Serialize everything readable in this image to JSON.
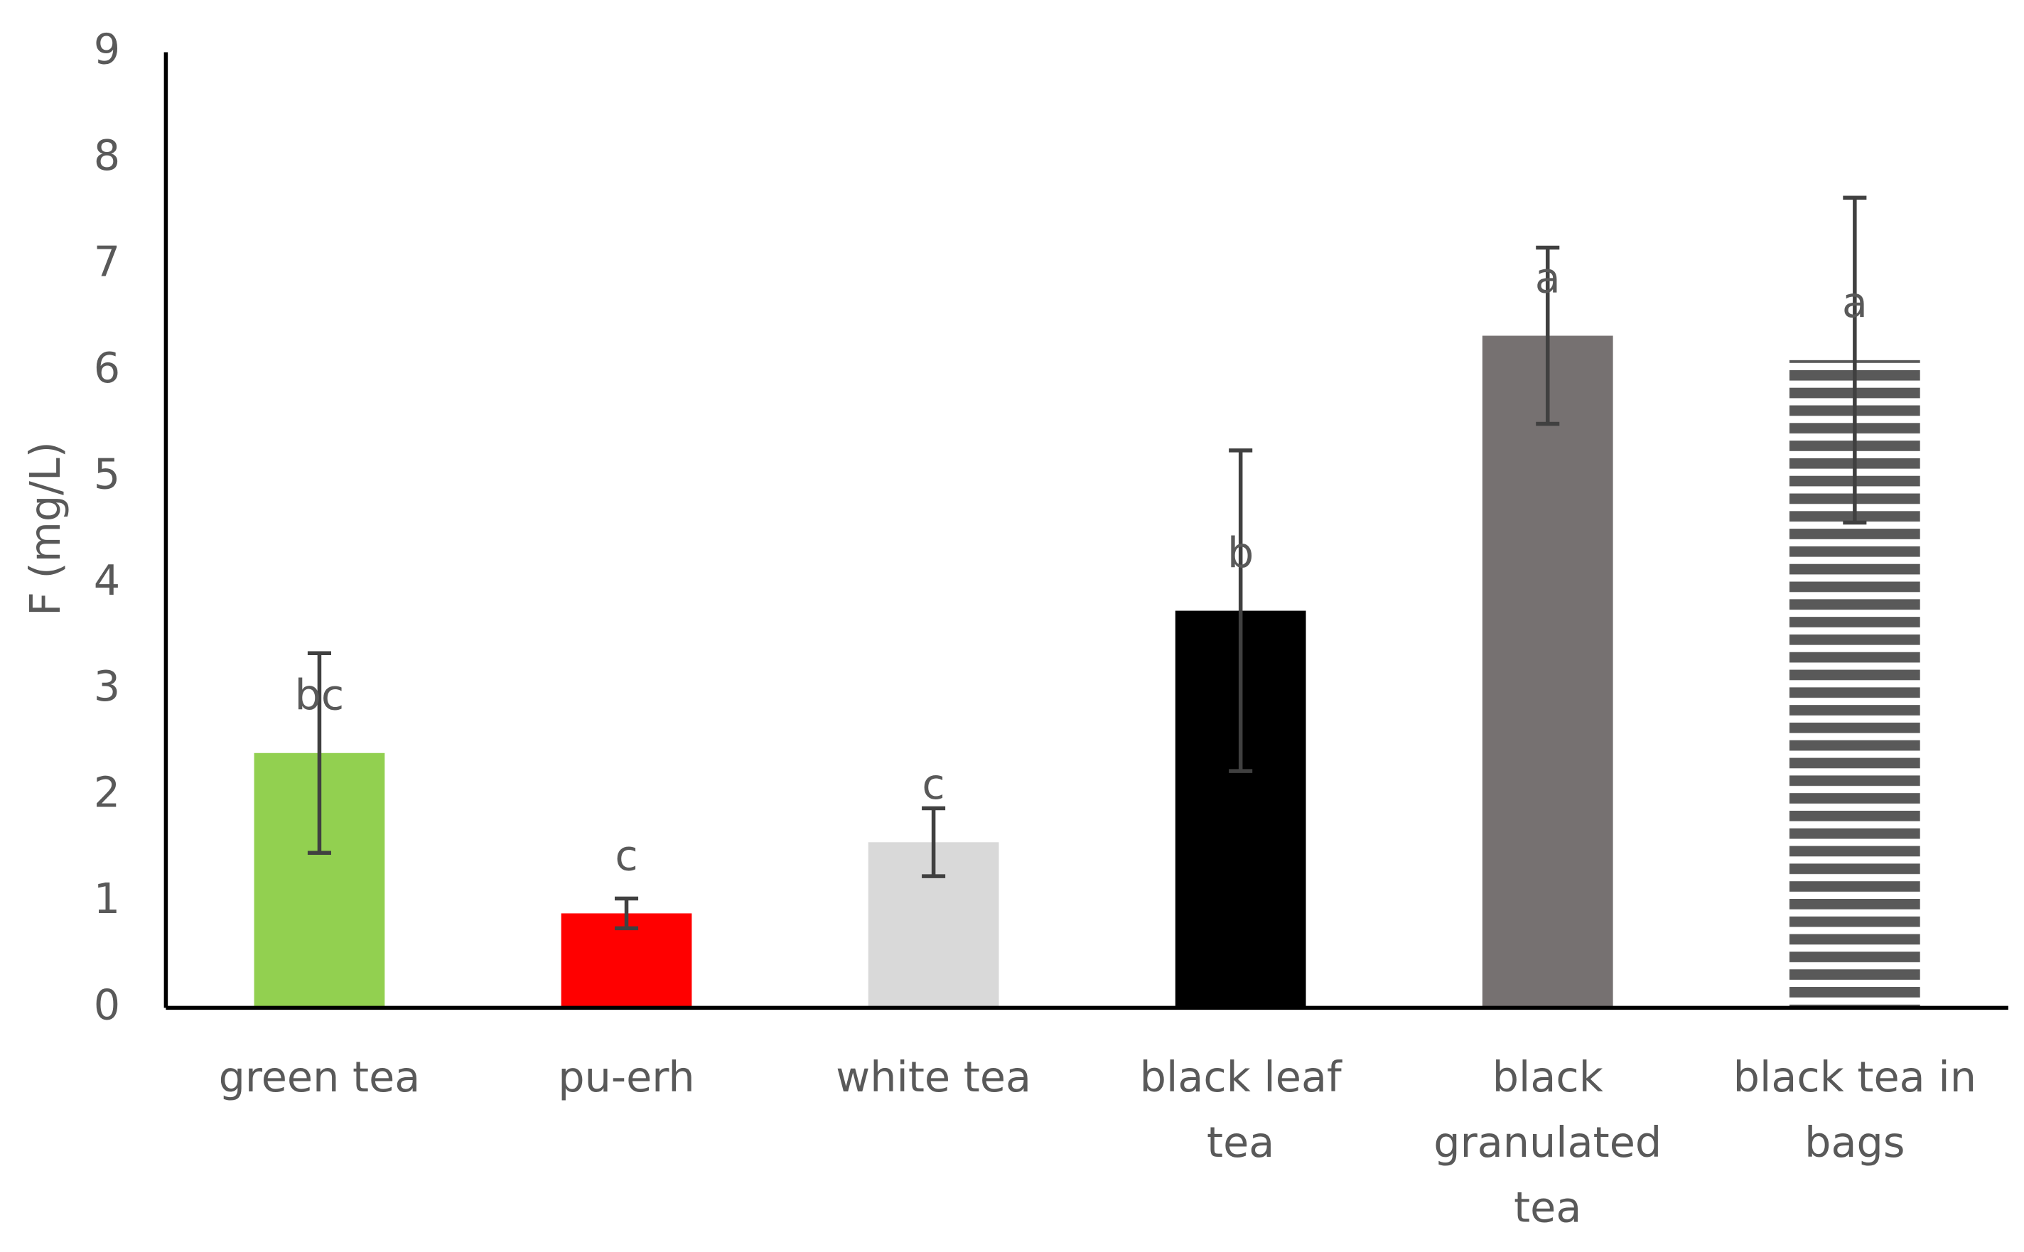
{
  "chart_data": {
    "type": "bar",
    "y_label": "F (mg/L)",
    "categories": [
      "green tea",
      "pu-erh",
      "white tea",
      "black leaf tea",
      "black granulated tea",
      "black tea in bags"
    ],
    "values": [
      2.4,
      0.89,
      1.56,
      3.74,
      6.33,
      6.1
    ],
    "errors": [
      0.94,
      0.14,
      0.32,
      1.51,
      0.83,
      1.53
    ],
    "value_labels": [
      "bc",
      "c",
      "c",
      "b",
      "a",
      "a"
    ],
    "colors": [
      "#92d050",
      "#ff0000",
      "#d9d9d9",
      "#000000",
      "#767171",
      "#595959"
    ],
    "patterns": [
      null,
      null,
      null,
      null,
      null,
      "horizontal-stripes"
    ],
    "ylim": [
      0,
      9
    ],
    "yticks": [
      0,
      1,
      2,
      3,
      4,
      5,
      6,
      7,
      8,
      9
    ],
    "grid": false
  }
}
